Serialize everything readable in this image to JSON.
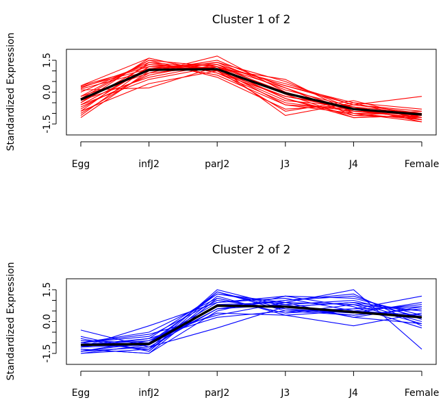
{
  "chart_data": [
    {
      "type": "line",
      "title": "Cluster 1 of 2",
      "ylabel": "Standardized Expression",
      "xlabel": "",
      "categories": [
        "Egg",
        "infJ2",
        "parJ2",
        "J3",
        "J4",
        "Female"
      ],
      "ylim": [
        -1.5,
        1.5
      ],
      "yticks": [
        "-1.5",
        "0.0",
        "1.5"
      ],
      "series_color": "#ff0000",
      "centroid_color": "#000000",
      "centroid": [
        -0.35,
        1.05,
        1.08,
        -0.05,
        -0.8,
        -1.05
      ],
      "series": [
        {
          "values": [
            -0.2,
            1.5,
            1.2,
            0.4,
            -0.6,
            -1.0
          ]
        },
        {
          "values": [
            0.2,
            1.3,
            1.0,
            -0.2,
            -0.8,
            -1.1
          ]
        },
        {
          "values": [
            -0.6,
            1.1,
            1.4,
            0.1,
            -0.7,
            -1.2
          ]
        },
        {
          "values": [
            -1.0,
            0.9,
            1.2,
            0.0,
            -1.0,
            -1.3
          ]
        },
        {
          "values": [
            0.3,
            1.6,
            0.9,
            -0.5,
            -0.9,
            -1.0
          ]
        },
        {
          "values": [
            -0.4,
            0.7,
            1.3,
            0.3,
            -0.6,
            -0.9
          ]
        },
        {
          "values": [
            -0.8,
            1.2,
            1.1,
            -0.3,
            -1.1,
            -1.2
          ]
        },
        {
          "values": [
            0.0,
            1.4,
            0.8,
            -0.6,
            -0.8,
            -1.3
          ]
        },
        {
          "values": [
            -1.2,
            1.0,
            1.5,
            0.2,
            -0.9,
            -1.1
          ]
        },
        {
          "values": [
            0.1,
            0.2,
            1.2,
            -1.1,
            -0.5,
            -0.8
          ]
        },
        {
          "values": [
            -0.5,
            1.3,
            1.1,
            0.6,
            -1.0,
            -1.4
          ]
        },
        {
          "values": [
            -0.9,
            0.4,
            1.0,
            -0.4,
            -0.7,
            -1.0
          ]
        },
        {
          "values": [
            0.25,
            1.1,
            1.3,
            -0.1,
            -1.2,
            -1.1
          ]
        },
        {
          "values": [
            -0.3,
            1.5,
            0.7,
            -0.8,
            -0.6,
            -0.2
          ]
        },
        {
          "values": [
            -0.7,
            0.8,
            1.4,
            0.5,
            -0.8,
            -1.3
          ]
        },
        {
          "values": [
            -1.1,
            1.2,
            1.0,
            -0.9,
            -0.4,
            -1.2
          ]
        },
        {
          "values": [
            0.15,
            1.0,
            1.2,
            0.2,
            -1.1,
            -0.9
          ]
        },
        {
          "values": [
            -0.5,
            1.6,
            0.9,
            -0.2,
            -0.7,
            -1.4
          ]
        },
        {
          "values": [
            -0.2,
            0.9,
            1.7,
            0.0,
            -0.9,
            -1.2
          ]
        },
        {
          "values": [
            -0.9,
            1.4,
            1.1,
            -0.6,
            -1.0,
            -1.0
          ]
        },
        {
          "values": [
            0.3,
            1.2,
            1.3,
            0.3,
            -0.5,
            -1.3
          ]
        },
        {
          "values": [
            -0.6,
            0.6,
            1.2,
            -0.3,
            -1.2,
            -1.1
          ]
        }
      ]
    },
    {
      "type": "line",
      "title": "Cluster 2 of 2",
      "ylabel": "Standardized Expression",
      "xlabel": "",
      "categories": [
        "Egg",
        "infJ2",
        "parJ2",
        "J3",
        "J4",
        "Female"
      ],
      "ylim": [
        -1.5,
        1.5
      ],
      "yticks": [
        "-1.5",
        "0.0",
        "1.5"
      ],
      "series_color": "#0000ff",
      "centroid_color": "#000000",
      "centroid": [
        -1.1,
        -1.05,
        0.75,
        0.7,
        0.45,
        0.2
      ],
      "series": [
        {
          "values": [
            -1.0,
            -1.3,
            1.5,
            0.7,
            0.9,
            0.5
          ]
        },
        {
          "values": [
            -1.2,
            -0.8,
            1.3,
            0.9,
            1.5,
            -1.3
          ]
        },
        {
          "values": [
            -1.4,
            -1.0,
            0.9,
            1.2,
            1.1,
            0.3
          ]
        },
        {
          "values": [
            -0.4,
            -1.2,
            0.6,
            0.8,
            0.2,
            0.7
          ]
        },
        {
          "values": [
            -1.3,
            -1.5,
            1.1,
            0.4,
            0.6,
            1.2
          ]
        },
        {
          "values": [
            -1.0,
            -0.6,
            0.3,
            0.9,
            0.8,
            -0.1
          ]
        },
        {
          "values": [
            -1.5,
            -1.1,
            1.4,
            0.5,
            0.3,
            0.6
          ]
        },
        {
          "values": [
            -1.1,
            -0.9,
            0.7,
            1.0,
            1.3,
            -0.2
          ]
        },
        {
          "values": [
            -0.8,
            -1.4,
            1.2,
            0.3,
            -0.2,
            0.4
          ]
        },
        {
          "values": [
            -1.2,
            -0.2,
            0.9,
            1.1,
            0.5,
            0.8
          ]
        },
        {
          "values": [
            -1.4,
            -1.2,
            -0.3,
            0.7,
            0.9,
            0.0
          ]
        },
        {
          "values": [
            -1.0,
            -0.7,
            1.0,
            0.6,
            0.4,
            0.9
          ]
        },
        {
          "values": [
            -1.3,
            -1.5,
            0.5,
            1.2,
            0.7,
            -0.3
          ]
        },
        {
          "values": [
            -0.9,
            -1.0,
            1.3,
            0.8,
            1.0,
            0.2
          ]
        },
        {
          "values": [
            -1.1,
            -0.8,
            0.2,
            0.5,
            0.6,
            0.7
          ]
        },
        {
          "values": [
            -1.5,
            -1.3,
            0.8,
            0.9,
            0.2,
            -0.1
          ]
        },
        {
          "values": [
            -1.0,
            -0.5,
            1.1,
            0.4,
            0.8,
            0.5
          ]
        },
        {
          "values": [
            -1.2,
            -1.1,
            0.6,
            1.0,
            1.2,
            0.1
          ]
        },
        {
          "values": [
            -0.7,
            -1.4,
            1.4,
            0.6,
            0.3,
            0.6
          ]
        },
        {
          "values": [
            -1.4,
            -0.9,
            0.4,
            0.3,
            0.5,
            0.3
          ]
        }
      ]
    }
  ]
}
